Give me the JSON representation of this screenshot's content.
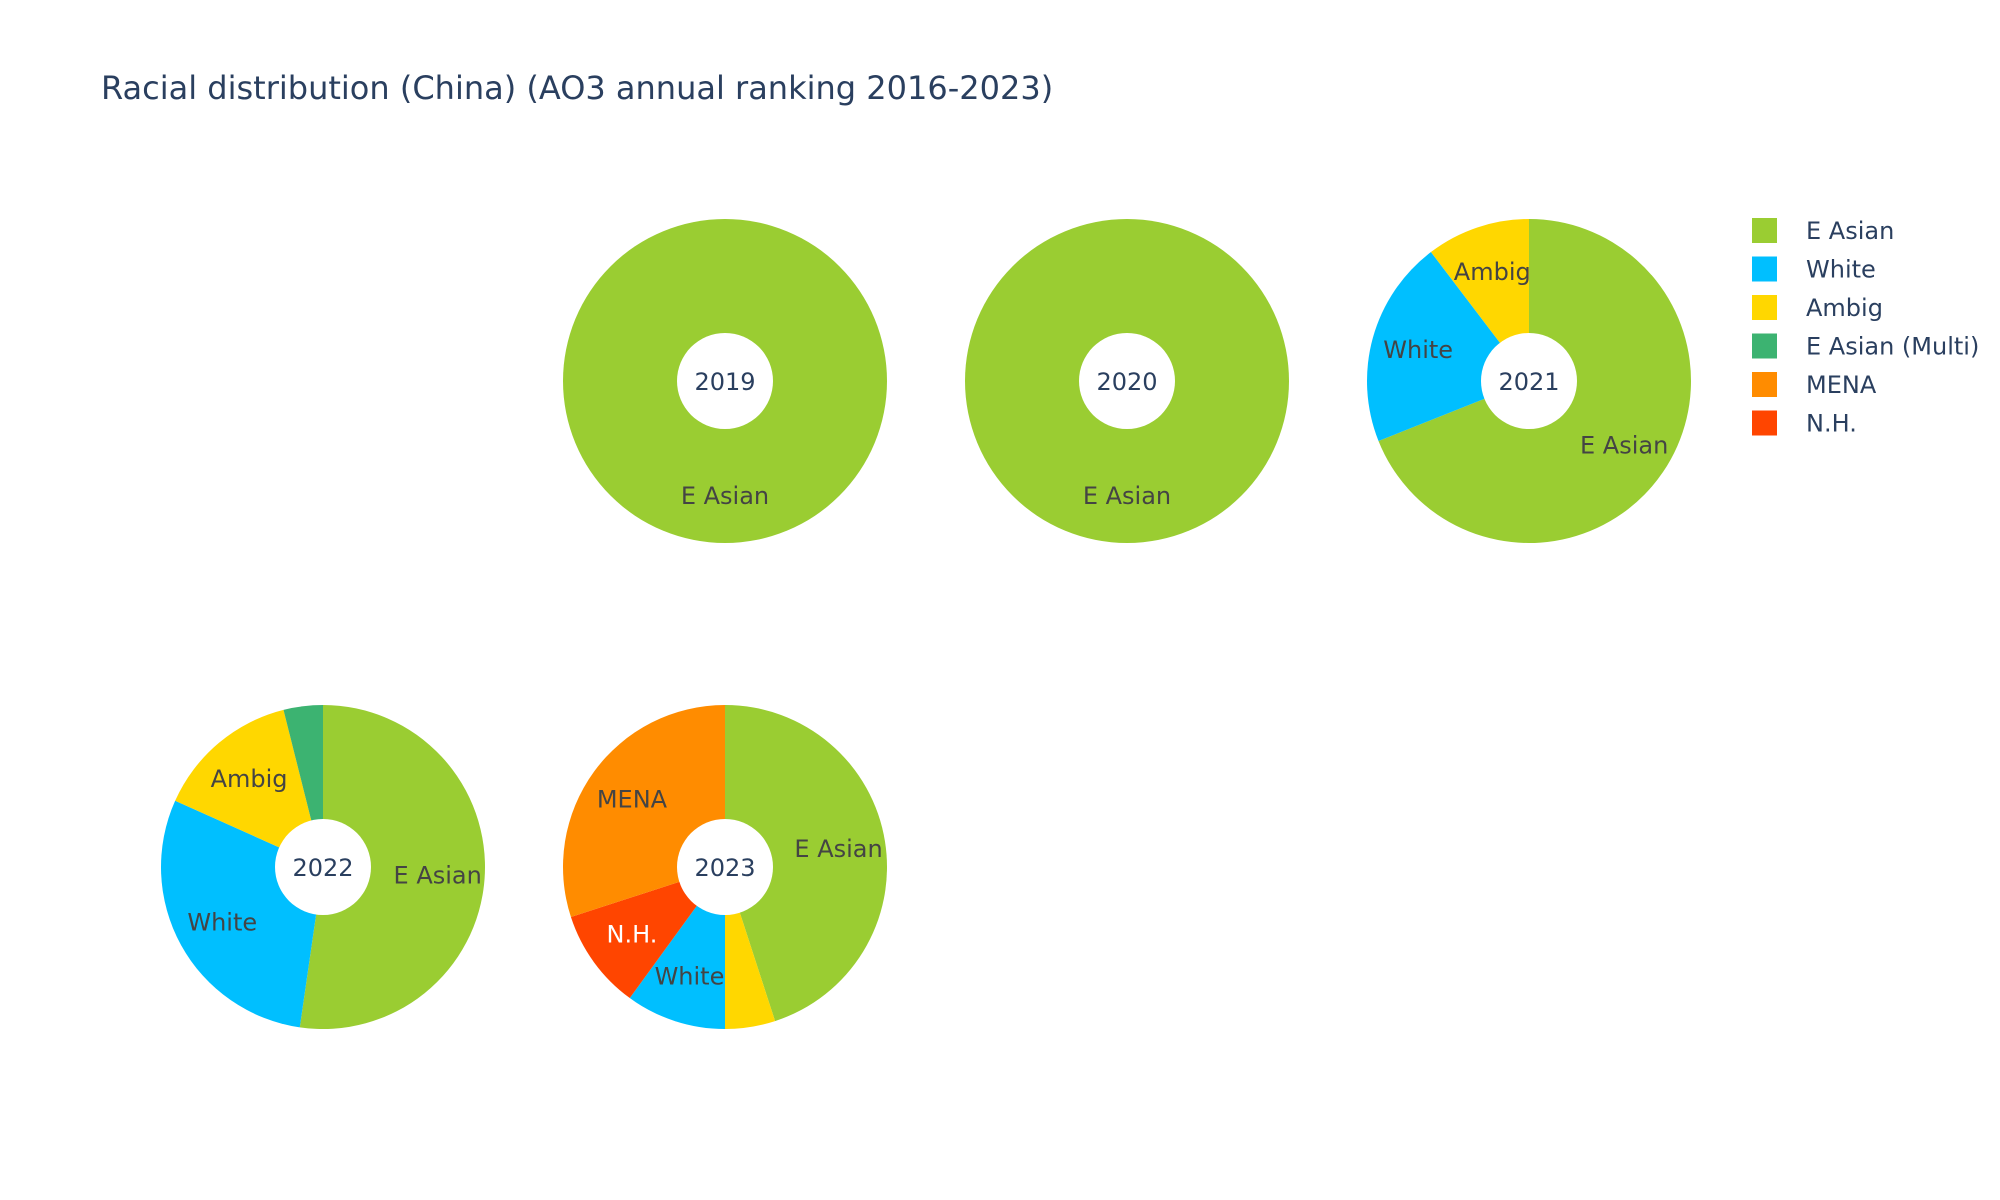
{
  "chart_data": {
    "type": "pie",
    "title": "Racial distribution (China) (AO3 annual ranking 2016-2023)",
    "hole": true,
    "legend_position": "top-right",
    "legend": [
      {
        "name": "E Asian",
        "color": "#9acd32"
      },
      {
        "name": "White",
        "color": "#00bfff"
      },
      {
        "name": "Ambig",
        "color": "#ffd700"
      },
      {
        "name": "E Asian (Multi)",
        "color": "#3cb371"
      },
      {
        "name": "MENA",
        "color": "#ff8c00"
      },
      {
        "name": "N.H.",
        "color": "#ff4500"
      }
    ],
    "pies": [
      {
        "year": "2019",
        "slices": [
          {
            "label": "E Asian",
            "value": 1
          }
        ]
      },
      {
        "year": "2020",
        "slices": [
          {
            "label": "E Asian",
            "value": 1
          }
        ]
      },
      {
        "year": "2021",
        "slices": [
          {
            "label": "E Asian",
            "value": 2
          },
          {
            "label": "White",
            "value": 0.6
          },
          {
            "label": "Ambig",
            "value": 0.3
          }
        ]
      },
      {
        "year": "2022",
        "slices": [
          {
            "label": "E Asian",
            "value": 8
          },
          {
            "label": "White",
            "value": 4.5
          },
          {
            "label": "Ambig",
            "value": 2.2
          },
          {
            "label": "E Asian (Multi)",
            "value": 0.6
          }
        ]
      },
      {
        "year": "2023",
        "slices": [
          {
            "label": "E Asian",
            "value": 4.5
          },
          {
            "label": "Ambig",
            "value": 0.5
          },
          {
            "label": "White",
            "value": 1
          },
          {
            "label": "N.H.",
            "value": 1
          },
          {
            "label": "MENA",
            "value": 3
          }
        ]
      }
    ]
  }
}
